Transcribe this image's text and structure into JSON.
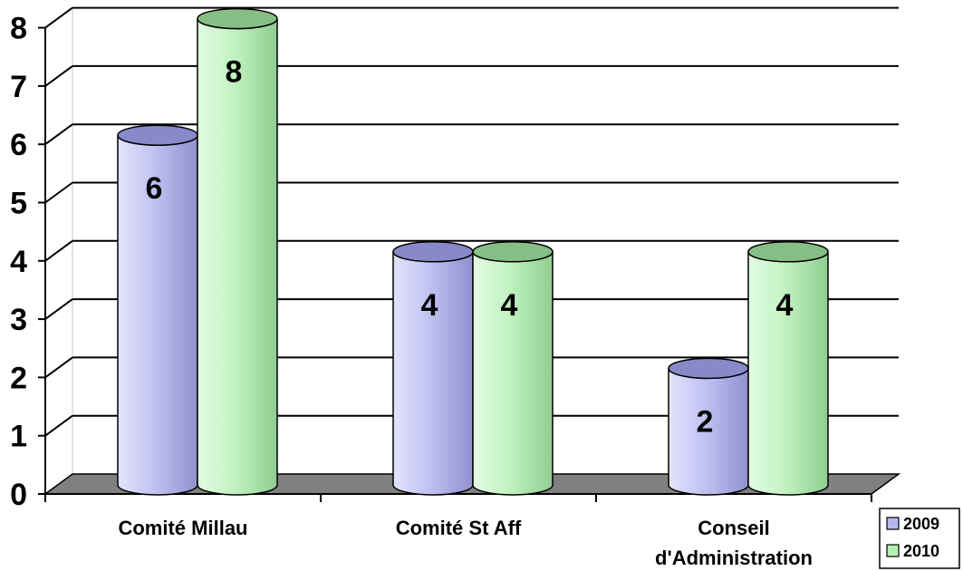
{
  "chart_data": {
    "type": "bar",
    "style": "3d-cylinder",
    "categories": [
      [
        "Comité Millau"
      ],
      [
        "Comité St Aff"
      ],
      [
        "Conseil",
        "d'Administration"
      ]
    ],
    "series": [
      {
        "name": "2009",
        "values": [
          6,
          4,
          2
        ],
        "color": "#b7b8ee"
      },
      {
        "name": "2010",
        "values": [
          8,
          4,
          4
        ],
        "color": "#b7f0b7"
      }
    ],
    "ylim": [
      0,
      8
    ],
    "yticks": [
      0,
      1,
      2,
      3,
      4,
      5,
      6,
      7,
      8
    ],
    "grid": true,
    "legend_position": "bottom-right",
    "data_labels": true
  }
}
